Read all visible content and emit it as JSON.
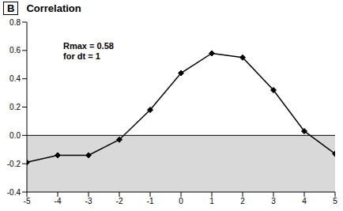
{
  "chart_data": {
    "type": "line",
    "title": "Correlation",
    "panel_label": "B",
    "annotations": [
      "Rmax = 0.58",
      "for dt = 1"
    ],
    "x": [
      -5,
      -4,
      -3,
      -2,
      -1,
      0,
      1,
      2,
      3,
      4,
      5
    ],
    "values": [
      -0.19,
      -0.14,
      -0.14,
      -0.03,
      0.18,
      0.44,
      0.58,
      0.55,
      0.32,
      0.03,
      -0.13
    ],
    "color": "#000000",
    "marker": "diamond",
    "xlim": [
      -5,
      5
    ],
    "xticks": [
      -5,
      -4,
      -3,
      -2,
      -1,
      0,
      1,
      2,
      3,
      4,
      5
    ],
    "ylim": [
      -0.4,
      0.8
    ],
    "yticks": [
      -0.4,
      -0.2,
      {
        "value": 0,
        "label": "0.0"
      },
      0.2,
      0.4,
      0.6,
      0.8
    ],
    "grid": false
  }
}
